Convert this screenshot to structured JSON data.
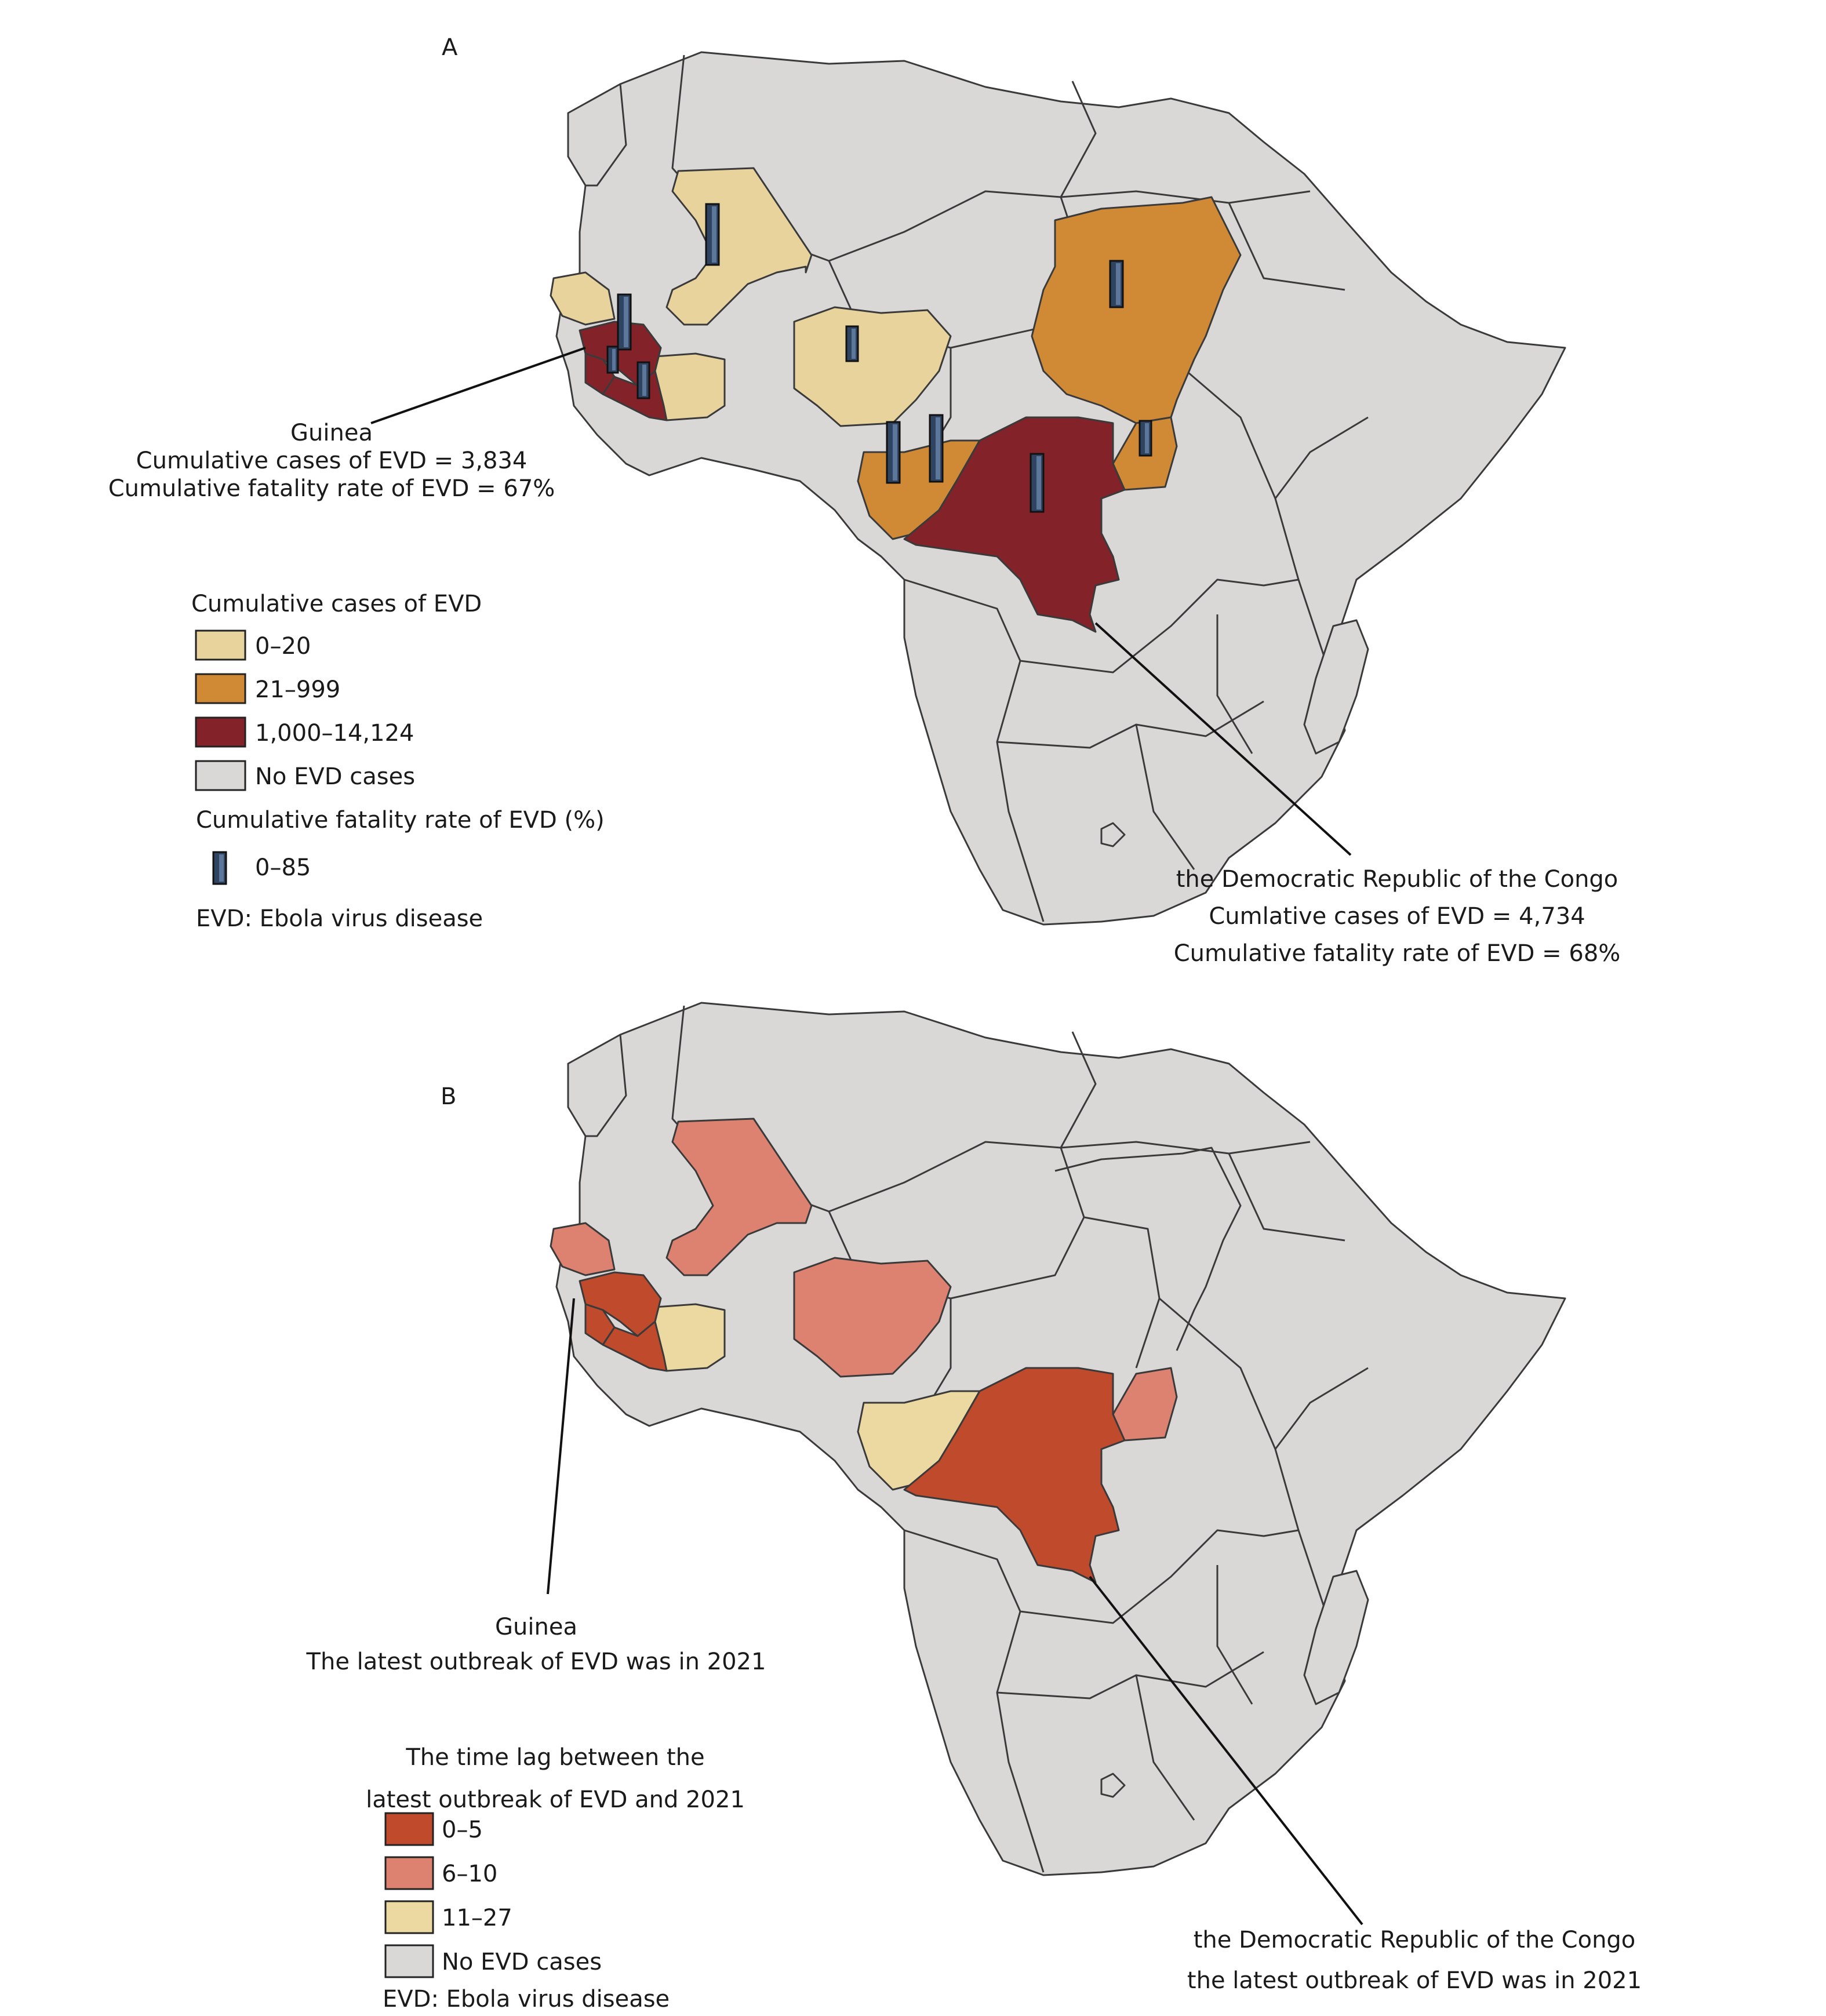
{
  "panel_a": {
    "label": "A",
    "guinea_callout": {
      "name": "Guinea",
      "cases": "Cumulative cases of EVD = 3,834",
      "fatality": "Cumulative fatality rate of EVD = 67%"
    },
    "drc_callout": {
      "name": "the Democratic Republic of the Congo",
      "cases": "Cumlative cases of EVD = 4,734",
      "fatality": "Cumulative fatality rate of EVD = 68%"
    },
    "legend": {
      "title": "Cumulative cases of EVD",
      "items": [
        {
          "label": "0–20",
          "color": "#e8d39c"
        },
        {
          "label": "21–999",
          "color": "#d08a36"
        },
        {
          "label": "1,000–14,124",
          "color": "#842229"
        },
        {
          "label": "No EVD cases",
          "color": "#dad7d7"
        }
      ],
      "fatality_title": "Cumulative fatality rate of EVD (%)",
      "fatality_range": "0–85",
      "bar_color": "#2e4460",
      "note": "EVD: Ebola virus disease"
    }
  },
  "panel_b": {
    "label": "B",
    "guinea_callout": {
      "name": "Guinea",
      "text": "The latest outbreak of EVD was in 2021"
    },
    "drc_callout": {
      "name": "the Democratic Republic of the Congo",
      "text": "the latest outbreak of EVD was in 2021"
    },
    "legend": {
      "title_line1": "The time lag between the",
      "title_line2": "latest outbreak of EVD and 2021",
      "items": [
        {
          "label": "0–5",
          "color": "#c04a2c"
        },
        {
          "label": "6–10",
          "color": "#dd8270"
        },
        {
          "label": "11–27",
          "color": "#ecd9a2"
        },
        {
          "label": "No EVD cases",
          "color": "#dad7d7"
        }
      ],
      "note": "EVD: Ebola virus disease"
    }
  }
}
